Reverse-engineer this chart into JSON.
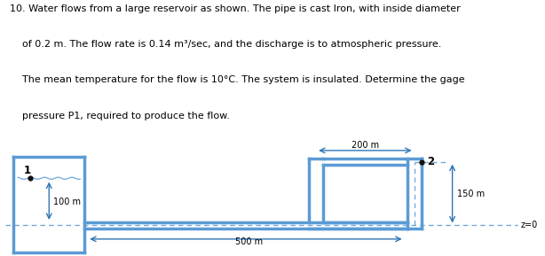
{
  "title_lines": [
    "10. Water flows from a large reservoir as shown. The pipe is cast Iron, with inside diameter",
    "    of 0.2 m. The flow rate is 0.14 m³/sec, and the discharge is to atmospheric pressure.",
    "    The mean temperature for the flow is 10°C. The system is insulated. Determine the gage",
    "    pressure P1, required to produce the flow."
  ],
  "pipe_color": "#5b9bd5",
  "pipe_lw": 2.5,
  "dashed_color": "#5b9bd5",
  "bg_color": "#ffffff",
  "text_color": "#000000",
  "annotation_color": "#2e75b6",
  "label_1": "1",
  "label_2": "2",
  "label_100m": "100 m",
  "label_150m": "150 m",
  "label_200m": "200 m",
  "label_500m": "500 m",
  "label_z0": "z=0"
}
